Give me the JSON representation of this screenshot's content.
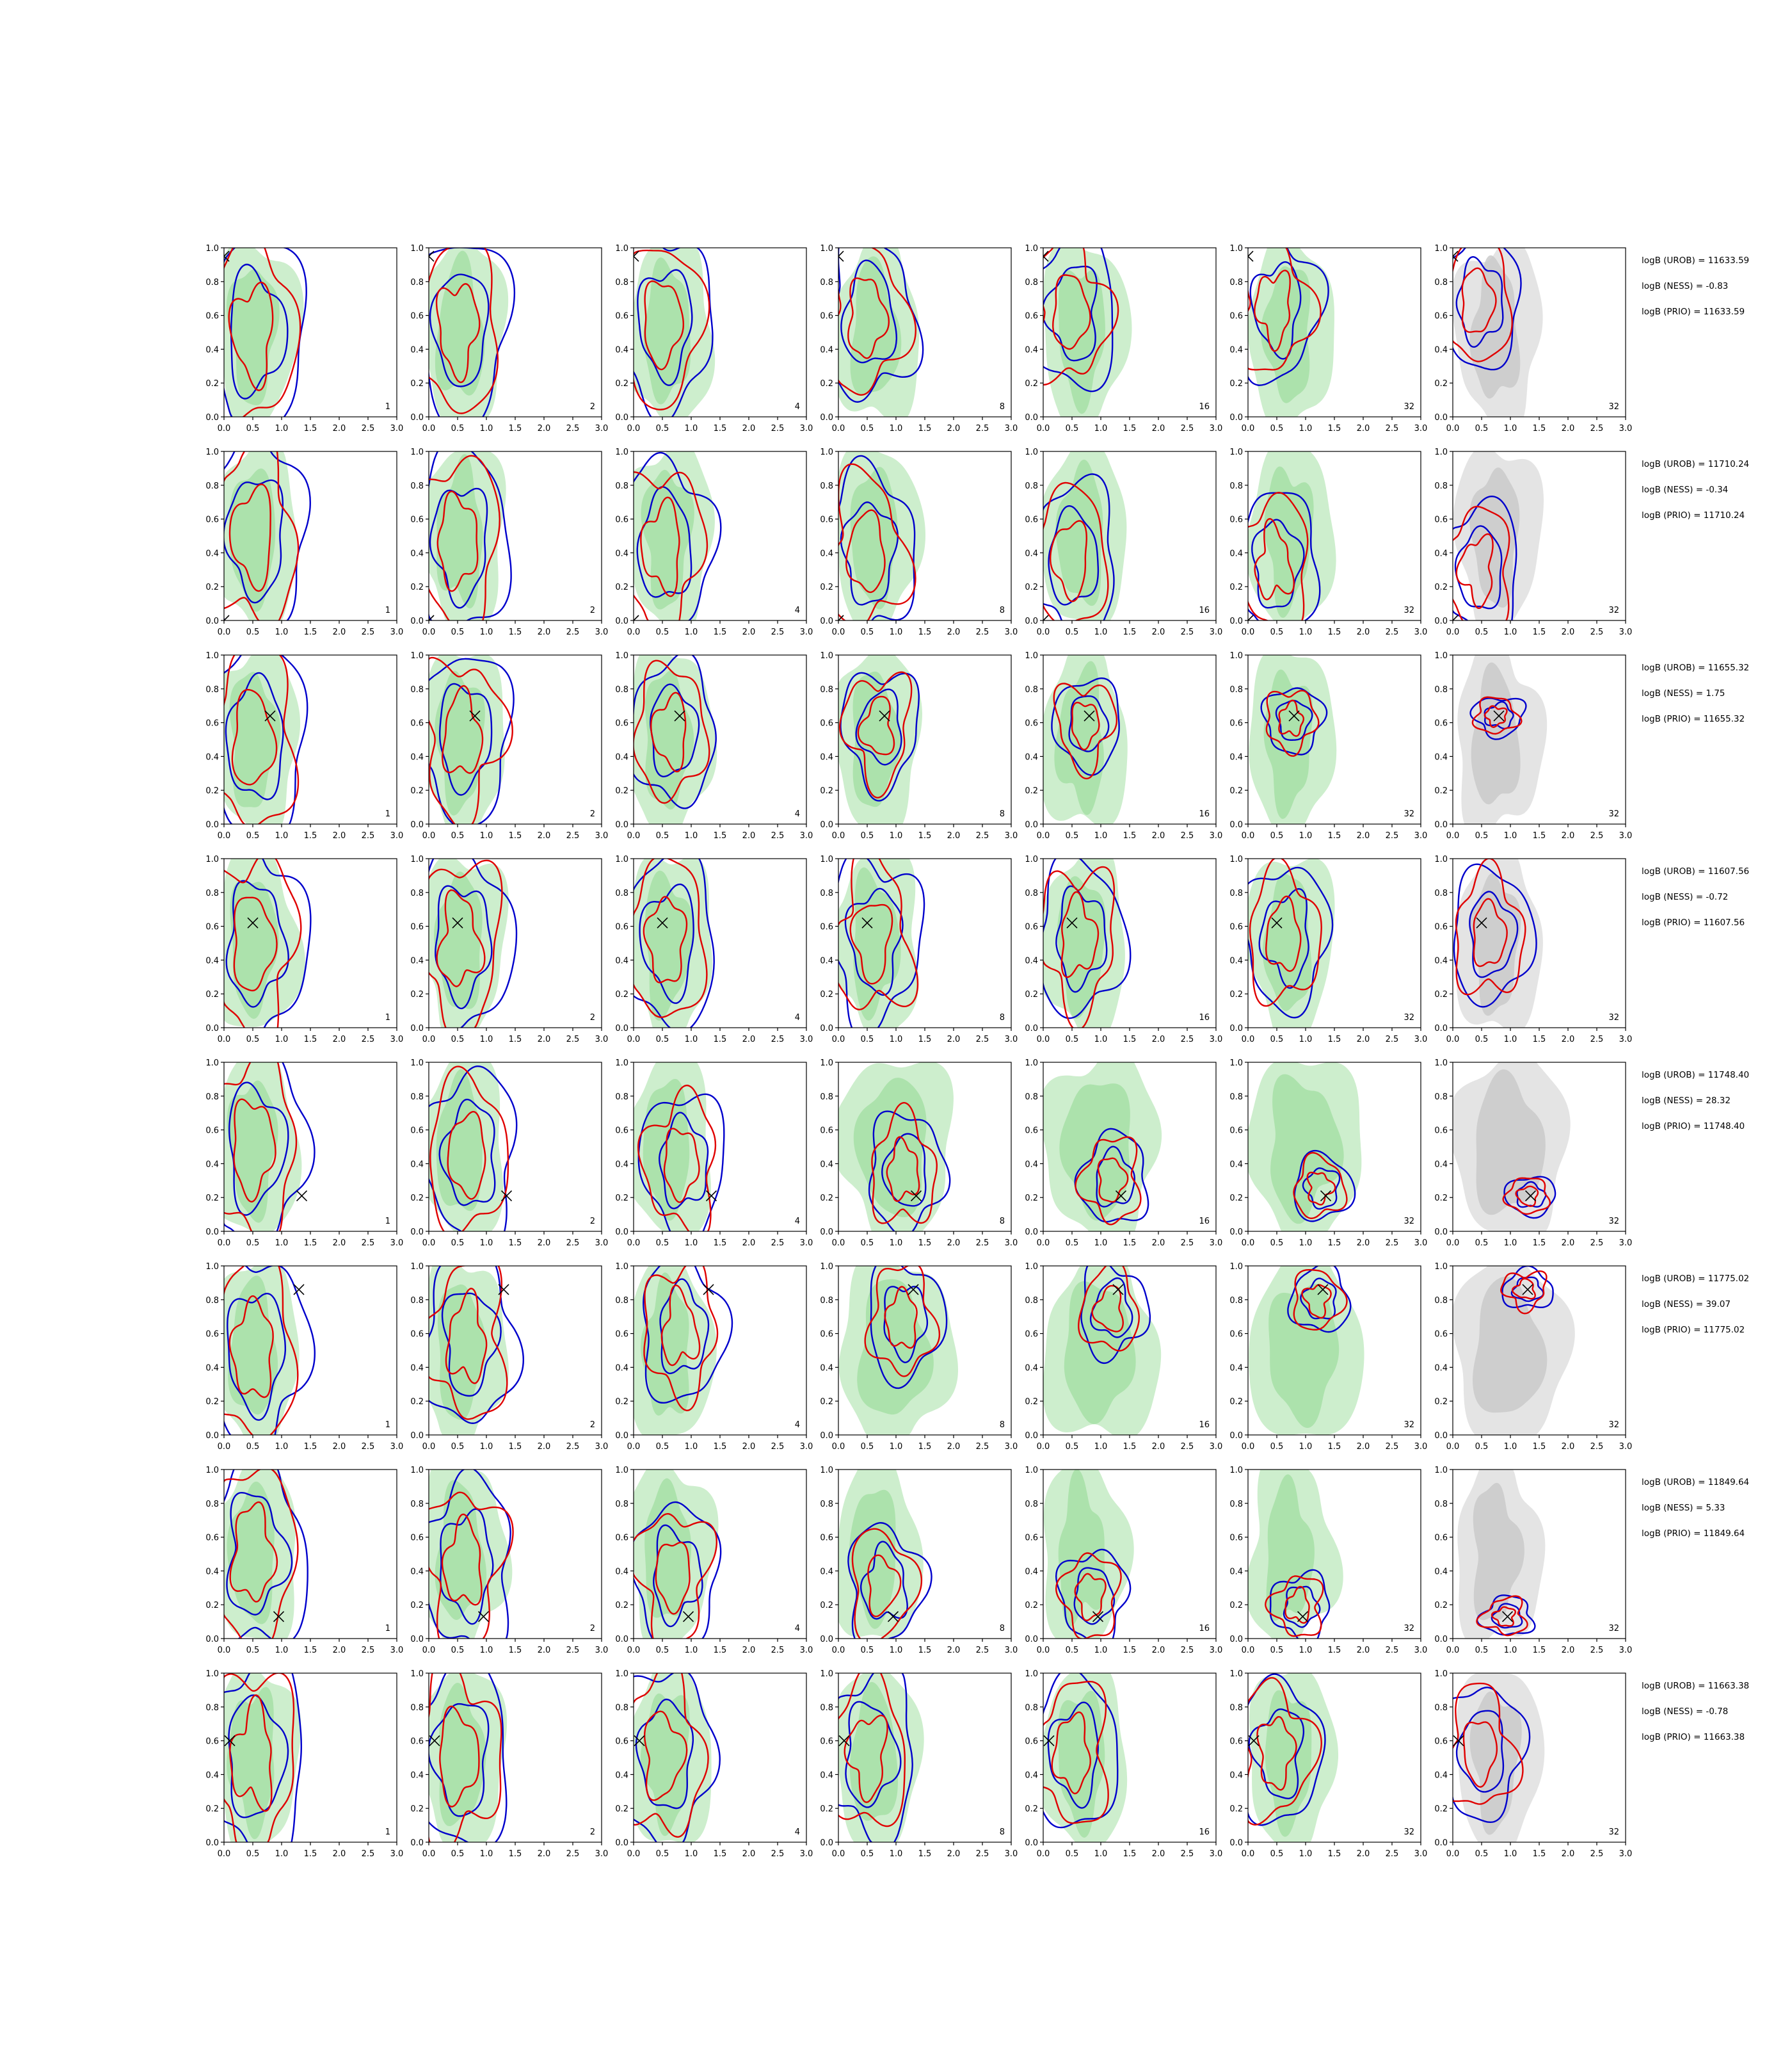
{
  "colors": {
    "prior_outer": "#cdeecd",
    "prior_inner": "#a4dea4",
    "grey_outer": "#e4e4e4",
    "grey_inner": "#c8c8c8",
    "red": "#e00000",
    "blue": "#0000cc",
    "marker": "#000000"
  },
  "chart_data": {
    "type": "contour-grid",
    "rows": 8,
    "cols": 7,
    "xlim": [
      0,
      3
    ],
    "ylim": [
      0,
      1
    ],
    "x_ticks": [
      "0.0",
      "0.5",
      "1.0",
      "1.5",
      "2.0",
      "2.5",
      "3.0"
    ],
    "y_ticks": [
      "0.0",
      "0.2",
      "0.4",
      "0.6",
      "0.8",
      "1.0"
    ],
    "panel_labels": [
      "1",
      "2",
      "4",
      "8",
      "16",
      "32",
      "32"
    ],
    "last_column_background": "grey",
    "legend": "none",
    "grid": false,
    "row_annotations": [
      [
        "logB (UROB) = 11633.59",
        "logB (NESS) = -0.83",
        "logB (PRIO) = 11633.59"
      ],
      [
        "logB (UROB) = 11710.24",
        "logB (NESS) = -0.34",
        "logB (PRIO) = 11710.24"
      ],
      [
        "logB (UROB) = 11655.32",
        "logB (NESS) = 1.75",
        "logB (PRIO) = 11655.32"
      ],
      [
        "logB (UROB) = 11607.56",
        "logB (NESS) = -0.72",
        "logB (PRIO) = 11607.56"
      ],
      [
        "logB (UROB) = 11748.40",
        "logB (NESS) = 28.32",
        "logB (PRIO) = 11748.40"
      ],
      [
        "logB (UROB) = 11775.02",
        "logB (NESS) = 39.07",
        "logB (PRIO) = 11775.02"
      ],
      [
        "logB (UROB) = 11849.64",
        "logB (NESS) = 5.33",
        "logB (PRIO) = 11849.64"
      ],
      [
        "logB (UROB) = 11663.38",
        "logB (NESS) = -0.78",
        "logB (PRIO) = 11663.38"
      ]
    ],
    "true_values": [
      {
        "x": 0.0,
        "y": 0.95
      },
      {
        "x": 0.0,
        "y": 0.0
      },
      {
        "x": 0.8,
        "y": 0.64
      },
      {
        "x": 0.5,
        "y": 0.62
      },
      {
        "x": 1.35,
        "y": 0.21
      },
      {
        "x": 1.3,
        "y": 0.86
      },
      {
        "x": 0.95,
        "y": 0.13
      },
      {
        "x": 0.1,
        "y": 0.6
      }
    ]
  }
}
